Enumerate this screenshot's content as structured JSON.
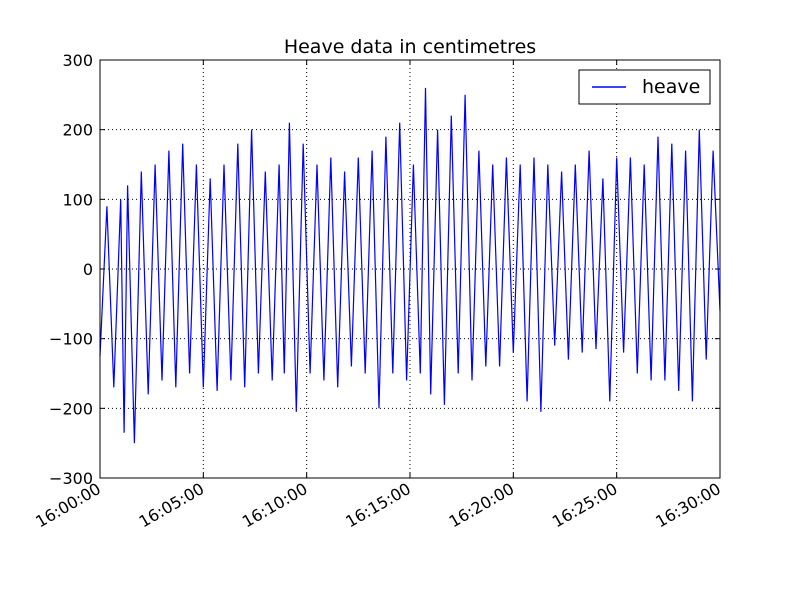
{
  "chart_data": {
    "type": "line",
    "title": "Heave data in centimetres",
    "xlabel": "",
    "ylabel": "",
    "x_range": [
      "16:00:00",
      "16:30:00"
    ],
    "x_ticks": [
      "16:00:00",
      "16:05:00",
      "16:10:00",
      "16:15:00",
      "16:20:00",
      "16:25:00",
      "16:30:00"
    ],
    "ylim": [
      -300,
      300
    ],
    "y_ticks": [
      -300,
      -200,
      -100,
      0,
      100,
      200,
      300
    ],
    "grid": true,
    "legend_position": "top-right",
    "series": [
      {
        "name": "heave",
        "color": "#0000ff",
        "x": [
          "16:00:00",
          "16:00:20",
          "16:00:40",
          "16:01:00",
          "16:01:10",
          "16:01:20",
          "16:01:40",
          "16:02:00",
          "16:02:20",
          "16:02:40",
          "16:03:00",
          "16:03:20",
          "16:03:40",
          "16:04:00",
          "16:04:20",
          "16:04:40",
          "16:05:00",
          "16:05:20",
          "16:05:40",
          "16:06:00",
          "16:06:20",
          "16:06:40",
          "16:07:00",
          "16:07:20",
          "16:07:40",
          "16:08:00",
          "16:08:20",
          "16:08:40",
          "16:08:55",
          "16:09:10",
          "16:09:30",
          "16:09:50",
          "16:10:10",
          "16:10:30",
          "16:10:50",
          "16:11:10",
          "16:11:30",
          "16:11:50",
          "16:12:10",
          "16:12:30",
          "16:12:50",
          "16:13:10",
          "16:13:30",
          "16:13:50",
          "16:14:10",
          "16:14:30",
          "16:14:50",
          "16:15:10",
          "16:15:30",
          "16:15:45",
          "16:16:00",
          "16:16:20",
          "16:16:40",
          "16:17:00",
          "16:17:20",
          "16:17:40",
          "16:18:00",
          "16:18:20",
          "16:18:40",
          "16:19:00",
          "16:19:20",
          "16:19:40",
          "16:20:00",
          "16:20:20",
          "16:20:40",
          "16:21:00",
          "16:21:20",
          "16:21:40",
          "16:22:00",
          "16:22:20",
          "16:22:40",
          "16:23:00",
          "16:23:20",
          "16:23:40",
          "16:24:00",
          "16:24:20",
          "16:24:40",
          "16:25:00",
          "16:25:20",
          "16:25:40",
          "16:26:00",
          "16:26:20",
          "16:26:40",
          "16:27:00",
          "16:27:20",
          "16:27:40",
          "16:28:00",
          "16:28:20",
          "16:28:40",
          "16:29:00",
          "16:29:20",
          "16:29:40",
          "16:30:00"
        ],
        "values": [
          -125,
          90,
          -170,
          100,
          -235,
          120,
          -250,
          140,
          -180,
          150,
          -160,
          170,
          -170,
          180,
          -150,
          150,
          -170,
          130,
          -175,
          150,
          -160,
          180,
          -170,
          200,
          -150,
          140,
          -160,
          150,
          -150,
          210,
          -205,
          180,
          -150,
          150,
          -160,
          160,
          -170,
          140,
          -140,
          160,
          -150,
          170,
          -200,
          190,
          -150,
          210,
          -160,
          150,
          -150,
          260,
          -180,
          200,
          -195,
          220,
          -150,
          250,
          -160,
          170,
          -140,
          150,
          -140,
          160,
          -120,
          150,
          -190,
          160,
          -205,
          150,
          -110,
          140,
          -130,
          150,
          -120,
          170,
          -115,
          130,
          -190,
          160,
          -120,
          160,
          -150,
          150,
          -160,
          190,
          -160,
          180,
          -175,
          170,
          -190,
          200,
          -130,
          170,
          -60
        ]
      }
    ]
  }
}
